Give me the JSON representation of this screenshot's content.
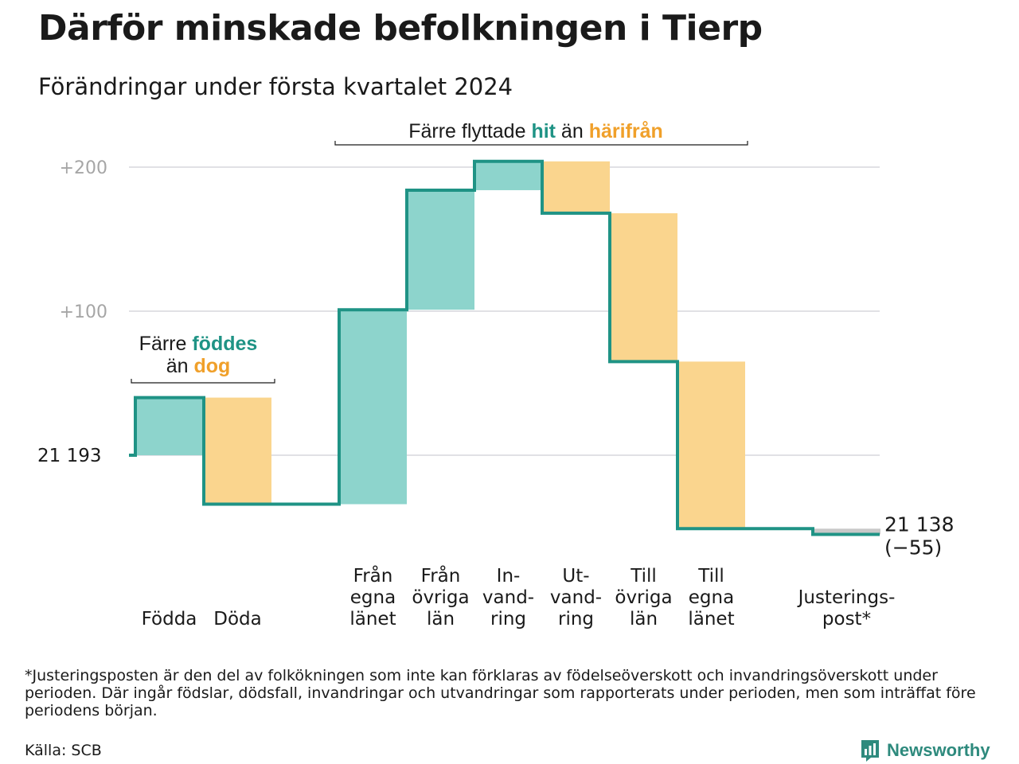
{
  "title": "Därför minskade befolkningen i Tierp",
  "subtitle": "Förändringar under första kvartalet 2024",
  "chart_data": {
    "type": "waterfall",
    "start_value": 21193,
    "start_label": "21  193",
    "end_value": 21138,
    "end_label": "21 138",
    "end_change_label": "(−55)",
    "ytick_labels": [
      "+200",
      "+100"
    ],
    "ytick_values": [
      200,
      100
    ],
    "ylim": [
      -55,
      210
    ],
    "steps": [
      {
        "label": [
          "Födda"
        ],
        "change": 40,
        "kind": "in"
      },
      {
        "label": [
          "Döda"
        ],
        "change": -74,
        "kind": "out"
      },
      {
        "label": [
          "Från",
          "egna",
          "länet"
        ],
        "change": 135,
        "kind": "in"
      },
      {
        "label": [
          "Från",
          "övriga",
          "län"
        ],
        "change": 83,
        "kind": "in"
      },
      {
        "label": [
          "In-",
          "vand-",
          "ring"
        ],
        "change": 20,
        "kind": "in"
      },
      {
        "label": [
          "Ut-",
          "vand-",
          "ring"
        ],
        "change": -36,
        "kind": "out"
      },
      {
        "label": [
          "Till",
          "övriga",
          "län"
        ],
        "change": -103,
        "kind": "out"
      },
      {
        "label": [
          "Till",
          "egna",
          "länet"
        ],
        "change": -116,
        "kind": "out"
      },
      {
        "label": [
          "Justerings-",
          "post*"
        ],
        "change": -4,
        "kind": "adjust"
      }
    ],
    "annotations": {
      "births": {
        "line1_pre": "Färre ",
        "line1_hl": "föddes",
        "line2_pre": "än ",
        "line2_hl": "dog"
      },
      "migration": {
        "pre": "Färre flyttade ",
        "hl1": "hit",
        "mid": " än ",
        "hl2": "härifrån"
      }
    },
    "colors": {
      "line": "#1f9385",
      "in_fill": "#8dd4cc",
      "out_fill": "#fad58e",
      "adjust_fill": "#c8c8c8",
      "hit": "#1f9385",
      "harifran": "#f0a02a",
      "grid": "#e1e1e5",
      "tick": "#a6a6a6"
    }
  },
  "footnote": "*Justeringsposten är den del av folkökningen som inte kan förklaras av födelseöverskott och invandringsöverskott under perioden. Där ingår födslar, dödsfall, invandringar och utvandringar som rapporterats under perioden, men som inträffat före periodens början.",
  "source": "Källa: SCB",
  "logo": {
    "text": "Newsworthy",
    "icon": "newsworthy-logo-icon"
  }
}
